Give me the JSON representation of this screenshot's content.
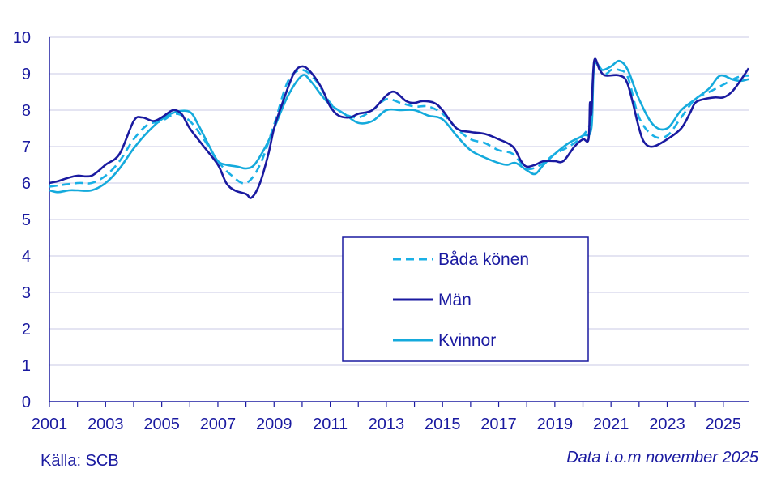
{
  "source_text": "Källa: SCB",
  "note_text": "Data t.o.m november 2025",
  "colors": {
    "bada": "#1ab0e6",
    "man": "#1a1aa0",
    "kvinnor": "#14aadc",
    "grid": "#c8c8e4",
    "text": "#1a1aa0"
  },
  "chart_data": {
    "type": "line",
    "title": "",
    "xlabel": "",
    "ylabel": "",
    "ylim": [
      0,
      10
    ],
    "xlim": [
      2001,
      2025.9
    ],
    "yticks": [
      "0",
      "1",
      "2",
      "3",
      "4",
      "5",
      "6",
      "7",
      "8",
      "9",
      "10"
    ],
    "xticks": [
      "2001",
      "2003",
      "2005",
      "2007",
      "2009",
      "2011",
      "2013",
      "2015",
      "2017",
      "2019",
      "2021",
      "2023",
      "2025"
    ],
    "grid": true,
    "legend_position": "center-right",
    "series": [
      {
        "name": "Båda könen",
        "style": "dashed",
        "points": [
          [
            2001,
            5.9
          ],
          [
            2002,
            6.0
          ],
          [
            2002.5,
            6.0
          ],
          [
            2003,
            6.2
          ],
          [
            2003.5,
            6.6
          ],
          [
            2004,
            7.2
          ],
          [
            2004.5,
            7.6
          ],
          [
            2005,
            7.7
          ],
          [
            2005.5,
            7.9
          ],
          [
            2006,
            7.7
          ],
          [
            2006.5,
            7.2
          ],
          [
            2007,
            6.6
          ],
          [
            2007.5,
            6.2
          ],
          [
            2008,
            6.0
          ],
          [
            2008.5,
            6.5
          ],
          [
            2009,
            7.6
          ],
          [
            2009.5,
            8.8
          ],
          [
            2010,
            9.1
          ],
          [
            2010.5,
            8.8
          ],
          [
            2011,
            8.2
          ],
          [
            2011.5,
            7.9
          ],
          [
            2012,
            7.8
          ],
          [
            2012.5,
            8.0
          ],
          [
            2013,
            8.3
          ],
          [
            2013.5,
            8.2
          ],
          [
            2014,
            8.1
          ],
          [
            2014.5,
            8.1
          ],
          [
            2015,
            7.9
          ],
          [
            2015.5,
            7.5
          ],
          [
            2016,
            7.2
          ],
          [
            2016.5,
            7.1
          ],
          [
            2017,
            6.9
          ],
          [
            2017.5,
            6.8
          ],
          [
            2018,
            6.4
          ],
          [
            2018.5,
            6.5
          ],
          [
            2019,
            6.8
          ],
          [
            2019.5,
            7.0
          ],
          [
            2020,
            7.3
          ],
          [
            2020.3,
            7.8
          ],
          [
            2020.4,
            9.2
          ],
          [
            2020.8,
            9.0
          ],
          [
            2021,
            9.1
          ],
          [
            2021.3,
            9.1
          ],
          [
            2021.6,
            8.9
          ],
          [
            2022,
            7.8
          ],
          [
            2022.5,
            7.3
          ],
          [
            2023,
            7.3
          ],
          [
            2023.5,
            7.8
          ],
          [
            2024,
            8.3
          ],
          [
            2024.5,
            8.5
          ],
          [
            2025,
            8.7
          ],
          [
            2025.5,
            8.9
          ],
          [
            2025.9,
            8.95
          ]
        ]
      },
      {
        "name": "Män",
        "style": "solid",
        "points": [
          [
            2001,
            6.0
          ],
          [
            2001.3,
            6.05
          ],
          [
            2001.7,
            6.15
          ],
          [
            2002,
            6.2
          ],
          [
            2002.5,
            6.2
          ],
          [
            2003,
            6.5
          ],
          [
            2003.5,
            6.8
          ],
          [
            2004,
            7.7
          ],
          [
            2004.3,
            7.8
          ],
          [
            2004.7,
            7.7
          ],
          [
            2005,
            7.8
          ],
          [
            2005.4,
            8.0
          ],
          [
            2005.7,
            7.9
          ],
          [
            2006,
            7.5
          ],
          [
            2006.5,
            7.0
          ],
          [
            2007,
            6.5
          ],
          [
            2007.3,
            6.0
          ],
          [
            2007.6,
            5.8
          ],
          [
            2008,
            5.7
          ],
          [
            2008.2,
            5.6
          ],
          [
            2008.5,
            6.0
          ],
          [
            2008.8,
            6.8
          ],
          [
            2009,
            7.5
          ],
          [
            2009.3,
            8.2
          ],
          [
            2009.7,
            9.0
          ],
          [
            2010,
            9.2
          ],
          [
            2010.3,
            9.05
          ],
          [
            2010.7,
            8.6
          ],
          [
            2011,
            8.1
          ],
          [
            2011.3,
            7.85
          ],
          [
            2011.7,
            7.8
          ],
          [
            2012,
            7.9
          ],
          [
            2012.5,
            8.0
          ],
          [
            2013,
            8.4
          ],
          [
            2013.3,
            8.5
          ],
          [
            2013.7,
            8.25
          ],
          [
            2014,
            8.2
          ],
          [
            2014.3,
            8.25
          ],
          [
            2014.7,
            8.2
          ],
          [
            2015,
            8.0
          ],
          [
            2015.5,
            7.5
          ],
          [
            2016,
            7.4
          ],
          [
            2016.5,
            7.35
          ],
          [
            2017,
            7.2
          ],
          [
            2017.5,
            7.0
          ],
          [
            2017.8,
            6.6
          ],
          [
            2018,
            6.45
          ],
          [
            2018.3,
            6.5
          ],
          [
            2018.6,
            6.6
          ],
          [
            2019,
            6.6
          ],
          [
            2019.3,
            6.6
          ],
          [
            2019.7,
            7.0
          ],
          [
            2020,
            7.2
          ],
          [
            2020.2,
            7.2
          ],
          [
            2020.25,
            8.2
          ],
          [
            2020.3,
            7.9
          ],
          [
            2020.4,
            9.35
          ],
          [
            2020.6,
            9.1
          ],
          [
            2020.8,
            8.95
          ],
          [
            2021.3,
            8.95
          ],
          [
            2021.6,
            8.7
          ],
          [
            2022,
            7.5
          ],
          [
            2022.2,
            7.1
          ],
          [
            2022.5,
            7.0
          ],
          [
            2023,
            7.2
          ],
          [
            2023.5,
            7.5
          ],
          [
            2023.8,
            7.9
          ],
          [
            2024,
            8.2
          ],
          [
            2024.3,
            8.3
          ],
          [
            2024.7,
            8.35
          ],
          [
            2025,
            8.35
          ],
          [
            2025.3,
            8.5
          ],
          [
            2025.6,
            8.8
          ],
          [
            2025.9,
            9.15
          ]
        ]
      },
      {
        "name": "Kvinnor",
        "style": "solid",
        "points": [
          [
            2001,
            5.8
          ],
          [
            2001.3,
            5.75
          ],
          [
            2001.7,
            5.8
          ],
          [
            2002,
            5.8
          ],
          [
            2002.5,
            5.8
          ],
          [
            2003,
            6.0
          ],
          [
            2003.5,
            6.4
          ],
          [
            2004,
            6.95
          ],
          [
            2004.5,
            7.4
          ],
          [
            2005,
            7.75
          ],
          [
            2005.5,
            7.95
          ],
          [
            2006,
            7.95
          ],
          [
            2006.3,
            7.6
          ],
          [
            2006.7,
            7.0
          ],
          [
            2007,
            6.6
          ],
          [
            2007.3,
            6.5
          ],
          [
            2007.7,
            6.45
          ],
          [
            2008,
            6.4
          ],
          [
            2008.3,
            6.5
          ],
          [
            2008.7,
            7.0
          ],
          [
            2009,
            7.5
          ],
          [
            2009.5,
            8.4
          ],
          [
            2010,
            8.95
          ],
          [
            2010.3,
            8.8
          ],
          [
            2010.7,
            8.4
          ],
          [
            2011,
            8.15
          ],
          [
            2011.5,
            7.9
          ],
          [
            2012,
            7.65
          ],
          [
            2012.5,
            7.7
          ],
          [
            2013,
            8.0
          ],
          [
            2013.5,
            8.0
          ],
          [
            2014,
            8.0
          ],
          [
            2014.5,
            7.85
          ],
          [
            2015,
            7.75
          ],
          [
            2015.5,
            7.3
          ],
          [
            2016,
            6.9
          ],
          [
            2016.5,
            6.7
          ],
          [
            2017,
            6.55
          ],
          [
            2017.3,
            6.5
          ],
          [
            2017.6,
            6.55
          ],
          [
            2018,
            6.35
          ],
          [
            2018.3,
            6.25
          ],
          [
            2018.6,
            6.5
          ],
          [
            2019,
            6.8
          ],
          [
            2019.5,
            7.1
          ],
          [
            2020,
            7.3
          ],
          [
            2020.3,
            7.5
          ],
          [
            2020.4,
            9.2
          ],
          [
            2020.7,
            9.1
          ],
          [
            2021,
            9.2
          ],
          [
            2021.3,
            9.35
          ],
          [
            2021.6,
            9.1
          ],
          [
            2022,
            8.3
          ],
          [
            2022.5,
            7.6
          ],
          [
            2023,
            7.5
          ],
          [
            2023.5,
            8.0
          ],
          [
            2024,
            8.3
          ],
          [
            2024.5,
            8.6
          ],
          [
            2024.8,
            8.9
          ],
          [
            2025,
            8.95
          ],
          [
            2025.3,
            8.85
          ],
          [
            2025.6,
            8.8
          ],
          [
            2025.9,
            8.85
          ]
        ]
      }
    ]
  }
}
